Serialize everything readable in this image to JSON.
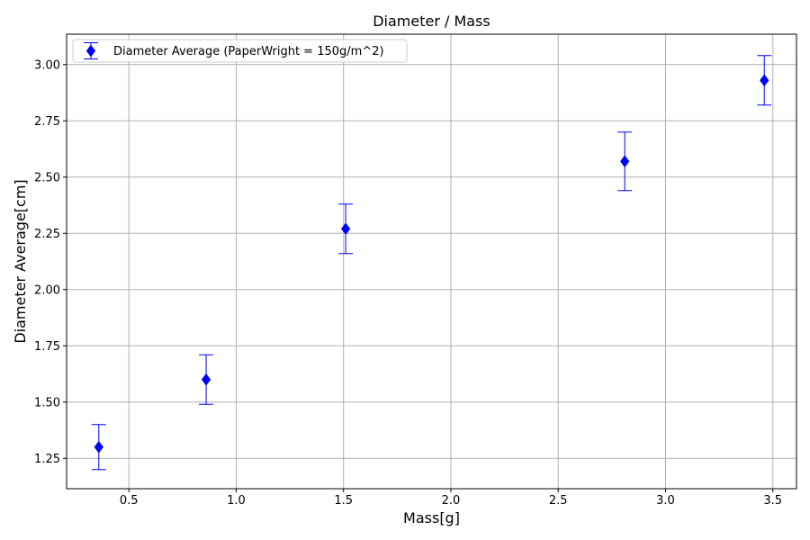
{
  "chart_data": {
    "type": "scatter",
    "title": "Diameter / Mass",
    "xlabel": "Mass[g]",
    "ylabel": "Diameter Average[cm]",
    "xlim": [
      0.21,
      3.61
    ],
    "ylim": [
      1.115,
      3.135
    ],
    "xticks": [
      0.5,
      1.0,
      1.5,
      2.0,
      2.5,
      3.0,
      3.5
    ],
    "xtick_labels": [
      "0.5",
      "1.0",
      "1.5",
      "2.0",
      "2.5",
      "3.0",
      "3.5"
    ],
    "yticks": [
      1.25,
      1.5,
      1.75,
      2.0,
      2.25,
      2.5,
      2.75,
      3.0
    ],
    "ytick_labels": [
      "1.25",
      "1.50",
      "1.75",
      "2.00",
      "2.25",
      "2.50",
      "2.75",
      "3.00"
    ],
    "grid": true,
    "legend_position": "top-left",
    "series": [
      {
        "name": "Diameter Average (PaperWright = 150g/m^2)",
        "color": "#0000ff",
        "marker": "diamond",
        "x": [
          0.36,
          0.86,
          1.51,
          2.81,
          3.46
        ],
        "y": [
          1.3,
          1.6,
          2.27,
          2.57,
          2.93
        ],
        "yerr_low": [
          1.2,
          1.49,
          2.16,
          2.44,
          2.82
        ],
        "yerr_high": [
          1.4,
          1.71,
          2.38,
          2.7,
          3.04
        ]
      }
    ]
  }
}
